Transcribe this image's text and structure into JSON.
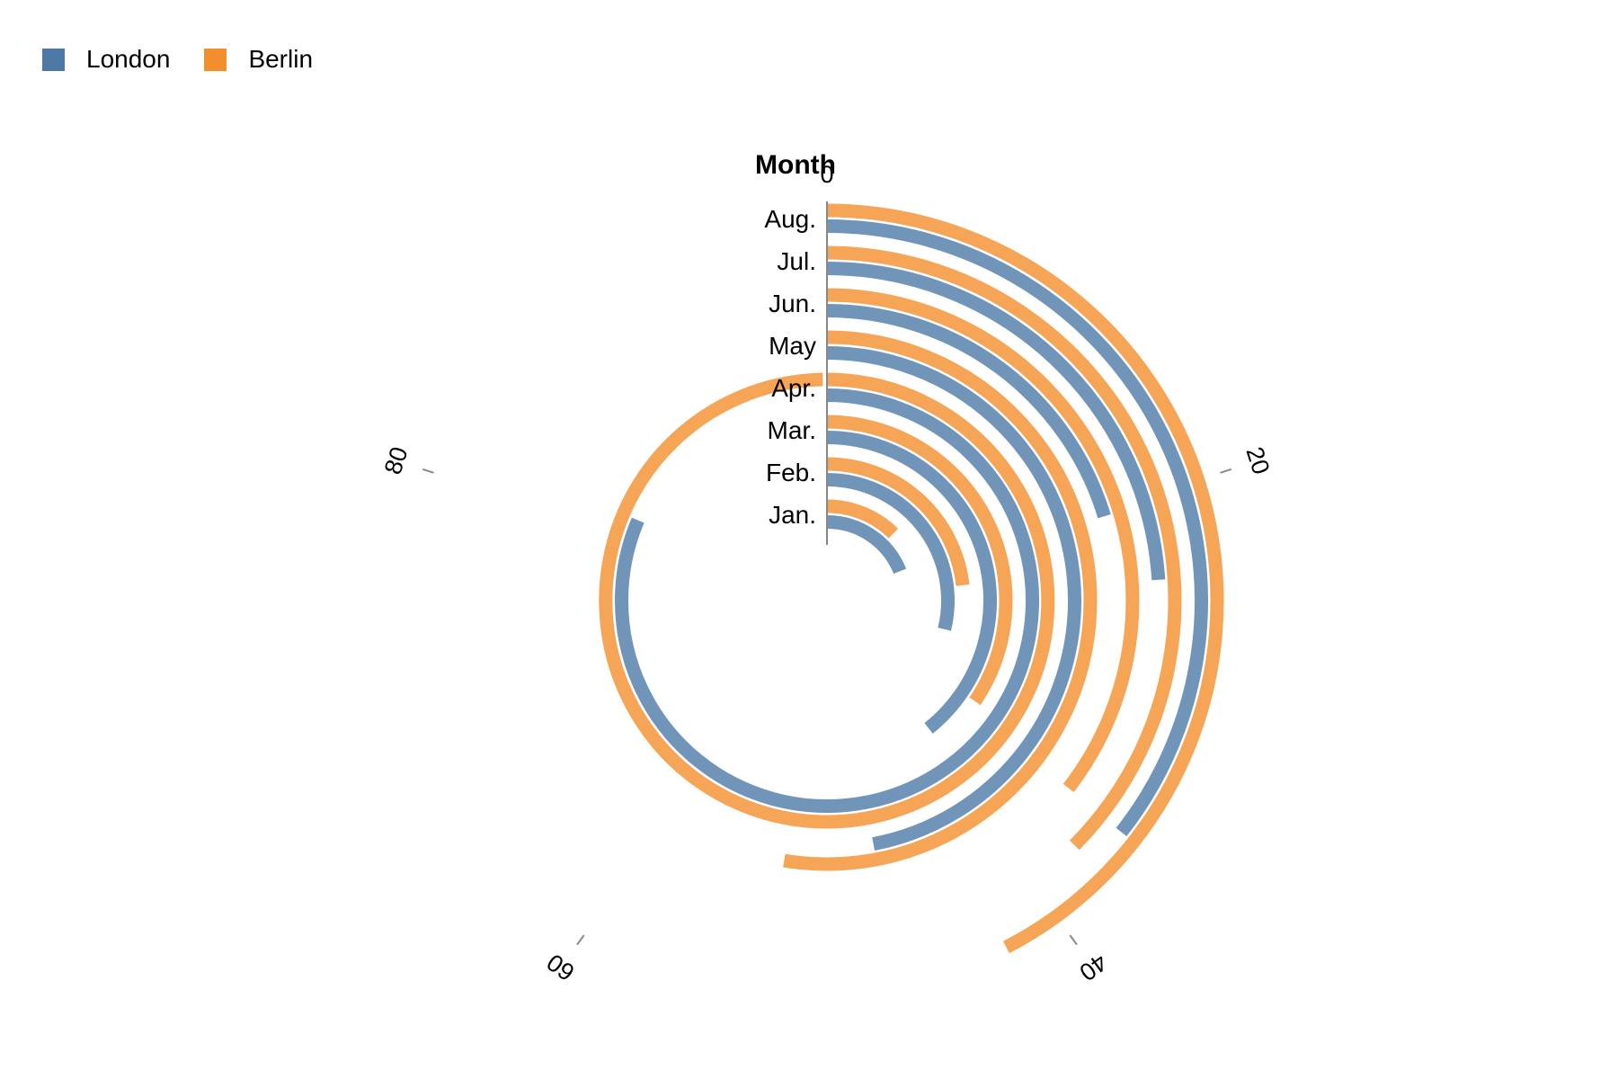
{
  "legend": {
    "items": [
      {
        "label": "London",
        "color": "#4e79a7"
      },
      {
        "label": "Berlin",
        "color": "#f28e2b"
      }
    ]
  },
  "chart_data": {
    "type": "bar",
    "subtype": "radial-bar",
    "title": "",
    "category_axis_title": "Month",
    "categories": [
      "Jan.",
      "Feb.",
      "Mar.",
      "Apr.",
      "May",
      "Jun.",
      "Jul.",
      "Aug."
    ],
    "series": [
      {
        "name": "London",
        "color": "#4e79a7",
        "values": [
          18.9,
          28.8,
          39.3,
          81.4,
          47,
          20.3,
          24,
          35.6
        ]
      },
      {
        "name": "Berlin",
        "color": "#f28e2b",
        "values": [
          12.4,
          23.2,
          34.5,
          99.7,
          52.6,
          35.5,
          37.4,
          42.4
        ]
      }
    ],
    "value_axis": {
      "min": 0,
      "max": 100,
      "ticks": [
        0,
        20,
        40,
        60,
        80
      ]
    },
    "legend_position": "top-left",
    "grid": false
  }
}
